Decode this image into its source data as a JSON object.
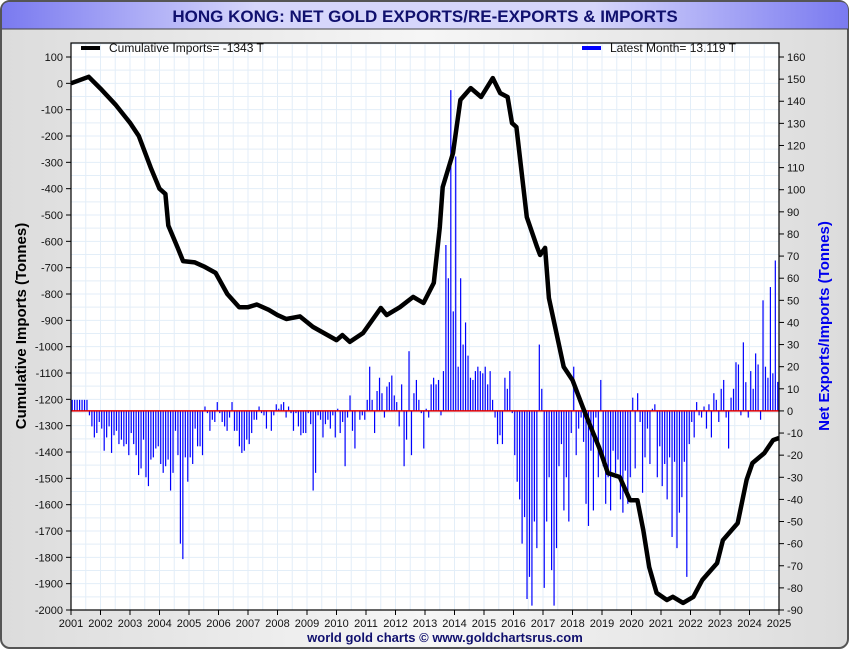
{
  "chart_data": {
    "type": "bar+line",
    "title": "HONG KONG: NET GOLD EXPORTS/RE-EXPORTS & IMPORTS",
    "footer": "world gold charts © www.goldchartsrus.com",
    "ylabel_left": "Cumulative Imports (Tonnes)",
    "ylabel_right": "Net Exports/Imports (Tonnes)",
    "ylim_left": [
      -2000,
      100
    ],
    "ylim_right": [
      -90,
      160
    ],
    "xlim": [
      2001,
      2025
    ],
    "grid": true,
    "legend": [
      {
        "label": "Cumulative Imports= -1343 T",
        "color": "#000000",
        "placement": "top-left"
      },
      {
        "label": "Latest Month= 13.119 T",
        "color": "#0000ff",
        "placement": "top-right"
      }
    ],
    "x_ticks": [
      "2001",
      "2002",
      "2003",
      "2004",
      "2005",
      "2006",
      "2007",
      "2008",
      "2009",
      "2010",
      "2011",
      "2012",
      "2013",
      "2014",
      "2015",
      "2016",
      "2017",
      "2018",
      "2019",
      "2020",
      "2021",
      "2022",
      "2023",
      "2024",
      "2025"
    ],
    "left_ticks": [
      "100",
      "0",
      "-100",
      "-200",
      "-300",
      "-400",
      "-500",
      "-600",
      "-700",
      "-800",
      "-900",
      "-1000",
      "-1100",
      "-1200",
      "-1300",
      "-1400",
      "-1500",
      "-1600",
      "-1700",
      "-1800",
      "-1900",
      "-2000"
    ],
    "right_ticks": [
      "160",
      "150",
      "140",
      "130",
      "120",
      "110",
      "100",
      "90",
      "80",
      "70",
      "60",
      "50",
      "40",
      "30",
      "20",
      "10",
      "0",
      "-10",
      "-20",
      "-30",
      "-40",
      "-50",
      "-60",
      "-70",
      "-80",
      "-90"
    ],
    "series": [
      {
        "name": "Net Exports/Imports (monthly, right axis)",
        "color": "#0000ff",
        "start": "2001-01",
        "values": [
          5,
          5,
          5,
          5,
          5,
          5,
          5,
          -2,
          -7,
          -12,
          -10,
          -5,
          -8,
          -18,
          -12,
          -7,
          -19,
          -11,
          -9,
          -15,
          -13,
          -16,
          -15,
          -20,
          -10,
          -15,
          -20,
          -29,
          -26,
          -13,
          -30,
          -34,
          -22,
          -21,
          -17,
          -16,
          -24,
          -28,
          -25,
          -22,
          -36,
          -28,
          -9,
          -20,
          -60,
          -67,
          -21,
          -32,
          -21,
          -24,
          -8,
          -16,
          -16,
          -20,
          2,
          -1,
          -9,
          -4,
          -5,
          4,
          -1,
          -5,
          -7,
          -9,
          -3,
          4,
          -9,
          -9,
          -16,
          -19,
          -18,
          -13,
          -15,
          -10,
          -4,
          -4,
          2,
          -1,
          -2,
          -8,
          0,
          -9,
          -2,
          3,
          1,
          3,
          4,
          -3,
          2,
          -1,
          -9,
          -1,
          -7,
          -11,
          -10,
          -10,
          -1,
          -6,
          -36,
          -28,
          -2,
          -4,
          -12,
          -6,
          -4,
          -8,
          -2,
          -12,
          1,
          -10,
          -5,
          -25,
          -3,
          7,
          -9,
          -17,
          0,
          -4,
          -2,
          -4,
          5,
          20,
          5,
          -10,
          9,
          15,
          8,
          -3,
          11,
          13,
          16,
          7,
          4,
          -7,
          12,
          -25,
          -13,
          27,
          -20,
          8,
          14,
          5,
          -1,
          -17,
          1,
          -3,
          12,
          15,
          12,
          14,
          -2,
          18,
          75,
          60,
          145,
          45,
          115,
          20,
          60,
          30,
          40,
          25,
          15,
          14,
          18,
          20,
          18,
          17,
          20,
          12,
          18,
          5,
          -3,
          -15,
          -11,
          -15,
          15,
          10,
          18,
          -1,
          -20,
          -32,
          -40,
          -60,
          -48,
          -85,
          -75,
          -88,
          -50,
          -62,
          30,
          10,
          -80,
          -50,
          -30,
          -72,
          -88,
          -62,
          -25,
          -15,
          -45,
          -30,
          -50,
          -10,
          20,
          -20,
          -8,
          -3,
          -14,
          -42,
          -52,
          -18,
          -45,
          -3,
          -30,
          14,
          -25,
          -42,
          -30,
          -45,
          -18,
          -28,
          -22,
          -40,
          -46,
          -27,
          -42,
          -30,
          6,
          -26,
          8,
          -5,
          -37,
          -21,
          -8,
          -24,
          1,
          3,
          -30,
          -16,
          -34,
          -24,
          -40,
          -21,
          -57,
          -23,
          -62,
          -46,
          -39,
          -23,
          -75,
          -15,
          -5,
          -12,
          4,
          -2,
          -3,
          2,
          -8,
          3,
          -12,
          8,
          5,
          -5,
          10,
          14,
          -3,
          -17,
          6,
          10,
          22,
          21,
          -2,
          31,
          13,
          -3,
          18,
          10,
          26,
          21,
          -4,
          50,
          20,
          15,
          56,
          17,
          68,
          13.119
        ]
      },
      {
        "name": "Cumulative Imports (left axis)",
        "color": "#000000",
        "points": [
          [
            2001.0,
            0
          ],
          [
            2001.6,
            25
          ],
          [
            2002.0,
            -20
          ],
          [
            2002.5,
            -80
          ],
          [
            2003.0,
            -150
          ],
          [
            2003.3,
            -200
          ],
          [
            2003.7,
            -320
          ],
          [
            2004.0,
            -400
          ],
          [
            2004.2,
            -420
          ],
          [
            2004.3,
            -540
          ],
          [
            2004.6,
            -620
          ],
          [
            2004.8,
            -675
          ],
          [
            2005.2,
            -680
          ],
          [
            2005.5,
            -695
          ],
          [
            2005.9,
            -720
          ],
          [
            2006.3,
            -800
          ],
          [
            2006.7,
            -850
          ],
          [
            2007.0,
            -850
          ],
          [
            2007.3,
            -840
          ],
          [
            2007.7,
            -860
          ],
          [
            2008.0,
            -880
          ],
          [
            2008.3,
            -895
          ],
          [
            2008.76,
            -885
          ],
          [
            2009.2,
            -925
          ],
          [
            2010.0,
            -975
          ],
          [
            2010.2,
            -956
          ],
          [
            2010.45,
            -982
          ],
          [
            2010.9,
            -948
          ],
          [
            2011.5,
            -853
          ],
          [
            2011.7,
            -880
          ],
          [
            2012.15,
            -850
          ],
          [
            2012.6,
            -811
          ],
          [
            2012.95,
            -834
          ],
          [
            2013.3,
            -758
          ],
          [
            2013.5,
            -546
          ],
          [
            2013.6,
            -394
          ],
          [
            2013.95,
            -265
          ],
          [
            2014.2,
            -63
          ],
          [
            2014.55,
            -18
          ],
          [
            2014.9,
            -52
          ],
          [
            2015.3,
            20
          ],
          [
            2015.55,
            -37
          ],
          [
            2015.8,
            -52
          ],
          [
            2015.95,
            -151
          ],
          [
            2016.1,
            -166
          ],
          [
            2016.45,
            -508
          ],
          [
            2016.8,
            -622
          ],
          [
            2016.9,
            -652
          ],
          [
            2017.07,
            -625
          ],
          [
            2017.2,
            -815
          ],
          [
            2017.7,
            -1077
          ],
          [
            2018.0,
            -1127
          ],
          [
            2018.35,
            -1230
          ],
          [
            2018.6,
            -1300
          ],
          [
            2018.9,
            -1383
          ],
          [
            2019.2,
            -1480
          ],
          [
            2019.6,
            -1495
          ],
          [
            2019.95,
            -1583
          ],
          [
            2020.2,
            -1583
          ],
          [
            2020.4,
            -1697
          ],
          [
            2020.6,
            -1837
          ],
          [
            2020.85,
            -1935
          ],
          [
            2021.2,
            -1962
          ],
          [
            2021.4,
            -1950
          ],
          [
            2021.75,
            -1973
          ],
          [
            2022.1,
            -1950
          ],
          [
            2022.4,
            -1886
          ],
          [
            2022.9,
            -1822
          ],
          [
            2023.1,
            -1735
          ],
          [
            2023.6,
            -1670
          ],
          [
            2023.9,
            -1506
          ],
          [
            2024.1,
            -1442
          ],
          [
            2024.5,
            -1404
          ],
          [
            2024.8,
            -1355
          ],
          [
            2025.0,
            -1347
          ]
        ]
      }
    ]
  }
}
